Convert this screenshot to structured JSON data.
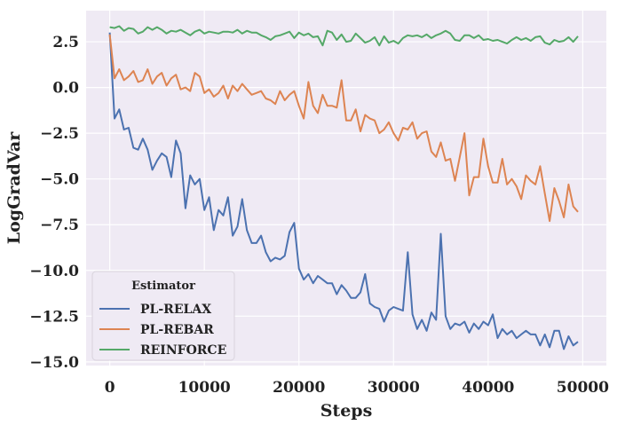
{
  "chart_data": {
    "type": "line",
    "xlabel": "Steps",
    "ylabel": "LogGradVar",
    "xlim": [
      -2500,
      52500
    ],
    "ylim": [
      -15.2,
      4.2
    ],
    "xticks": [
      0,
      10000,
      20000,
      30000,
      40000,
      50000
    ],
    "xtick_labels": [
      "0",
      "10000",
      "20000",
      "30000",
      "40000",
      "50000"
    ],
    "yticks": [
      2.5,
      0.0,
      -2.5,
      -5.0,
      -7.5,
      -10.0,
      -12.5,
      -15.0
    ],
    "ytick_labels": [
      "2.5",
      "0.0",
      "−2.5",
      "−5.0",
      "−7.5",
      "−10.0",
      "−12.5",
      "−15.0"
    ],
    "grid": true,
    "background": "#efeaf4",
    "legend": {
      "title": "Estimator",
      "placement": "lower-left"
    },
    "series": [
      {
        "name": "PL-RELAX",
        "color": "#4c72b0",
        "x": [
          0,
          500,
          1000,
          1500,
          2000,
          2500,
          3000,
          3500,
          4000,
          4500,
          5000,
          5500,
          6000,
          6500,
          7000,
          7500,
          8000,
          8500,
          9000,
          9500,
          10000,
          10500,
          11000,
          11500,
          12000,
          12500,
          13000,
          13500,
          14000,
          14500,
          15000,
          15500,
          16000,
          16500,
          17000,
          17500,
          18000,
          18500,
          19000,
          19500,
          20000,
          20500,
          21000,
          21500,
          22000,
          22500,
          23000,
          23500,
          24000,
          24500,
          25000,
          25500,
          26000,
          26500,
          27000,
          27500,
          28000,
          28500,
          29000,
          29500,
          30000,
          30500,
          31000,
          31500,
          32000,
          32500,
          33000,
          33500,
          34000,
          34500,
          35000,
          35500,
          36000,
          36500,
          37000,
          37500,
          38000,
          38500,
          39000,
          39500,
          40000,
          40500,
          41000,
          41500,
          42000,
          42500,
          43000,
          43500,
          44000,
          44500,
          45000,
          45500,
          46000,
          46500,
          47000,
          47500,
          48000,
          48500,
          49000,
          49500
        ],
        "values": [
          3.0,
          -1.7,
          -1.2,
          -2.3,
          -2.2,
          -3.3,
          -3.4,
          -2.8,
          -3.4,
          -4.5,
          -4.0,
          -3.6,
          -3.8,
          -4.9,
          -2.9,
          -3.6,
          -6.6,
          -4.8,
          -5.3,
          -5.0,
          -6.7,
          -6.0,
          -7.8,
          -6.7,
          -7.0,
          -6.0,
          -8.1,
          -7.6,
          -6.1,
          -7.8,
          -8.5,
          -8.5,
          -8.1,
          -9.0,
          -9.5,
          -9.3,
          -9.4,
          -9.2,
          -7.9,
          -7.4,
          -9.9,
          -10.5,
          -10.2,
          -10.7,
          -10.3,
          -10.5,
          -10.7,
          -10.7,
          -11.3,
          -10.8,
          -11.1,
          -11.5,
          -11.5,
          -11.2,
          -10.2,
          -11.8,
          -12.0,
          -12.1,
          -12.8,
          -12.2,
          -12.0,
          -12.1,
          -12.2,
          -9.0,
          -12.4,
          -13.2,
          -12.7,
          -13.3,
          -12.3,
          -12.7,
          -8.0,
          -12.5,
          -13.2,
          -12.9,
          -13.0,
          -12.8,
          -13.4,
          -12.9,
          -13.2,
          -12.8,
          -13.0,
          -12.4,
          -13.7,
          -13.2,
          -13.5,
          -13.3,
          -13.7,
          -13.5,
          -13.3,
          -13.5,
          -13.5,
          -14.1,
          -13.5,
          -14.2,
          -13.3,
          -13.3,
          -14.3,
          -13.6,
          -14.1,
          -13.9
        ]
      },
      {
        "name": "PL-REBAR",
        "color": "#dd8452",
        "x": [
          0,
          500,
          1000,
          1500,
          2000,
          2500,
          3000,
          3500,
          4000,
          4500,
          5000,
          5500,
          6000,
          6500,
          7000,
          7500,
          8000,
          8500,
          9000,
          9500,
          10000,
          10500,
          11000,
          11500,
          12000,
          12500,
          13000,
          13500,
          14000,
          14500,
          15000,
          15500,
          16000,
          16500,
          17000,
          17500,
          18000,
          18500,
          19000,
          19500,
          20000,
          20500,
          21000,
          21500,
          22000,
          22500,
          23000,
          23500,
          24000,
          24500,
          25000,
          25500,
          26000,
          26500,
          27000,
          27500,
          28000,
          28500,
          29000,
          29500,
          30000,
          30500,
          31000,
          31500,
          32000,
          32500,
          33000,
          33500,
          34000,
          34500,
          35000,
          35500,
          36000,
          36500,
          37000,
          37500,
          38000,
          38500,
          39000,
          39500,
          40000,
          40500,
          41000,
          41500,
          42000,
          42500,
          43000,
          43500,
          44000,
          44500,
          45000,
          45500,
          46000,
          46500,
          47000,
          47500,
          48000,
          48500,
          49000,
          49500
        ],
        "values": [
          2.9,
          0.5,
          1.0,
          0.4,
          0.6,
          0.9,
          0.3,
          0.4,
          1.0,
          0.2,
          0.6,
          0.8,
          0.1,
          0.5,
          0.7,
          -0.1,
          0.0,
          -0.2,
          0.8,
          0.6,
          -0.3,
          -0.1,
          -0.5,
          -0.3,
          0.1,
          -0.6,
          0.1,
          -0.2,
          0.2,
          -0.1,
          -0.4,
          -0.3,
          -0.2,
          -0.6,
          -0.7,
          -0.9,
          -0.2,
          -0.7,
          -0.4,
          -0.2,
          -1.0,
          -1.7,
          0.3,
          -1.0,
          -1.4,
          -0.4,
          -1.0,
          -1.0,
          -1.1,
          0.4,
          -1.8,
          -1.8,
          -1.2,
          -2.4,
          -1.5,
          -1.7,
          -1.8,
          -2.5,
          -2.3,
          -1.9,
          -2.5,
          -2.9,
          -2.2,
          -2.3,
          -1.9,
          -2.8,
          -2.5,
          -2.4,
          -3.5,
          -3.8,
          -3.0,
          -4.0,
          -3.9,
          -5.1,
          -3.8,
          -2.5,
          -5.9,
          -4.9,
          -4.9,
          -2.8,
          -4.3,
          -5.2,
          -5.2,
          -3.9,
          -5.3,
          -5.0,
          -5.4,
          -6.1,
          -4.8,
          -5.1,
          -5.3,
          -4.3,
          -5.8,
          -7.3,
          -5.5,
          -6.2,
          -7.1,
          -5.3,
          -6.5,
          -6.8
        ]
      },
      {
        "name": "REINFORCE",
        "color": "#55a868",
        "x": [
          0,
          500,
          1000,
          1500,
          2000,
          2500,
          3000,
          3500,
          4000,
          4500,
          5000,
          5500,
          6000,
          6500,
          7000,
          7500,
          8000,
          8500,
          9000,
          9500,
          10000,
          10500,
          11000,
          11500,
          12000,
          12500,
          13000,
          13500,
          14000,
          14500,
          15000,
          15500,
          16000,
          16500,
          17000,
          17500,
          18000,
          18500,
          19000,
          19500,
          20000,
          20500,
          21000,
          21500,
          22000,
          22500,
          23000,
          23500,
          24000,
          24500,
          25000,
          25500,
          26000,
          26500,
          27000,
          27500,
          28000,
          28500,
          29000,
          29500,
          30000,
          30500,
          31000,
          31500,
          32000,
          32500,
          33000,
          33500,
          34000,
          34500,
          35000,
          35500,
          36000,
          36500,
          37000,
          37500,
          38000,
          38500,
          39000,
          39500,
          40000,
          40500,
          41000,
          41500,
          42000,
          42500,
          43000,
          43500,
          44000,
          44500,
          45000,
          45500,
          46000,
          46500,
          47000,
          47500,
          48000,
          48500,
          49000,
          49500
        ],
        "values": [
          3.3,
          3.25,
          3.35,
          3.1,
          3.25,
          3.2,
          2.95,
          3.05,
          3.3,
          3.15,
          3.3,
          3.15,
          2.95,
          3.1,
          3.05,
          3.15,
          3.0,
          2.85,
          3.05,
          3.15,
          2.95,
          3.05,
          3.0,
          2.95,
          3.05,
          3.05,
          3.0,
          3.15,
          2.95,
          3.1,
          3.0,
          3.0,
          2.85,
          2.75,
          2.6,
          2.8,
          2.85,
          2.95,
          3.05,
          2.7,
          3.0,
          2.85,
          2.95,
          2.75,
          2.8,
          2.3,
          3.1,
          3.0,
          2.6,
          2.9,
          2.5,
          2.55,
          2.95,
          2.7,
          2.45,
          2.55,
          2.75,
          2.3,
          2.8,
          2.45,
          2.55,
          2.4,
          2.7,
          2.85,
          2.8,
          2.85,
          2.75,
          2.9,
          2.7,
          2.85,
          2.95,
          3.1,
          2.95,
          2.6,
          2.55,
          2.85,
          2.85,
          2.7,
          2.85,
          2.6,
          2.65,
          2.55,
          2.6,
          2.5,
          2.4,
          2.6,
          2.75,
          2.6,
          2.7,
          2.55,
          2.75,
          2.8,
          2.45,
          2.35,
          2.6,
          2.5,
          2.55,
          2.75,
          2.5,
          2.8
        ]
      }
    ]
  }
}
